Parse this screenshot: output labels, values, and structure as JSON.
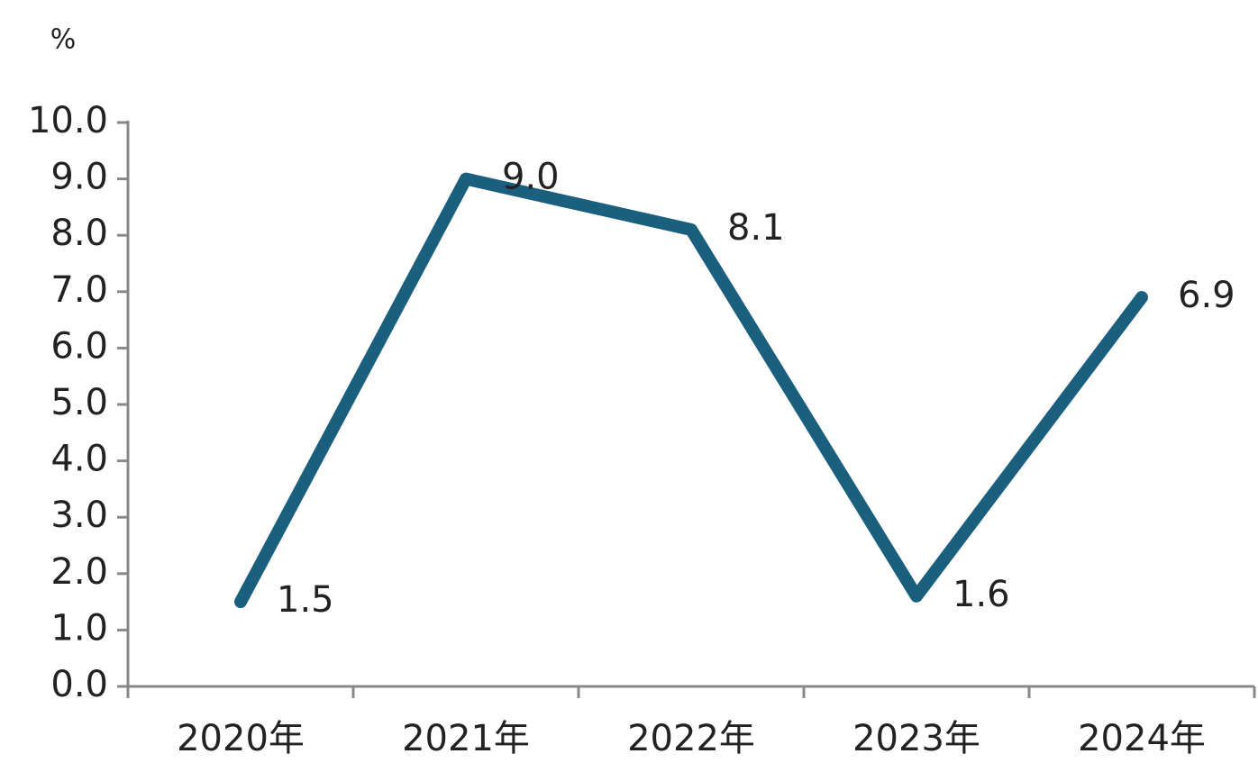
{
  "chart_data": {
    "type": "line",
    "y_unit": "%",
    "categories": [
      "2020年",
      "2021年",
      "2022年",
      "2023年",
      "2024年"
    ],
    "series": [
      {
        "color": "#1b5f7e",
        "values": [
          1.5,
          9.0,
          8.1,
          1.6,
          6.9
        ],
        "value_labels": [
          "1.5",
          "9.0",
          "8.1",
          "1.6",
          "6.9"
        ]
      }
    ],
    "ylim": [
      0,
      10
    ],
    "yticks": [
      {
        "value": 0,
        "label": "0.0"
      },
      {
        "value": 1,
        "label": "1.0"
      },
      {
        "value": 2,
        "label": "2.0"
      },
      {
        "value": 3,
        "label": "3.0"
      },
      {
        "value": 4,
        "label": "4.0"
      },
      {
        "value": 5,
        "label": "5.0"
      },
      {
        "value": 6,
        "label": "6.0"
      },
      {
        "value": 7,
        "label": "7.0"
      },
      {
        "value": 8,
        "label": "8.0"
      },
      {
        "value": 9,
        "label": "9.0"
      },
      {
        "value": 10,
        "label": "10.0"
      }
    ],
    "grid": false
  }
}
